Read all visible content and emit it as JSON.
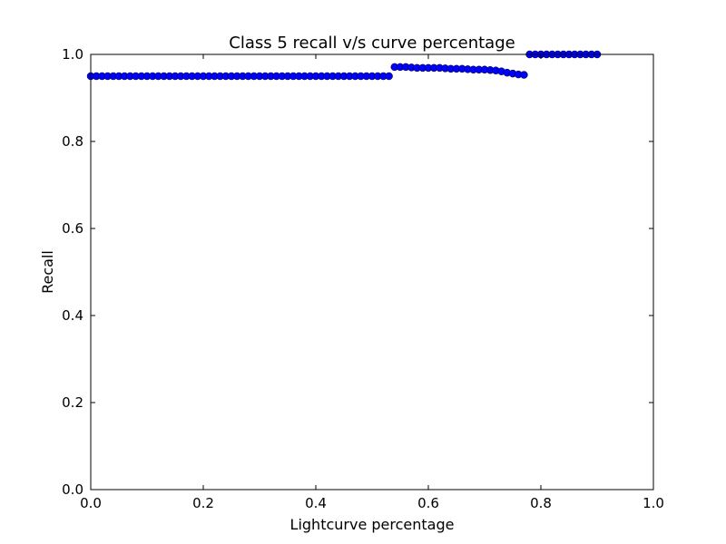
{
  "chart_data": {
    "type": "scatter",
    "title": "Class 5 recall v/s curve percentage",
    "xlabel": "Lightcurve percentage",
    "ylabel": "Recall",
    "xlim": [
      0.0,
      1.0
    ],
    "ylim": [
      0.0,
      1.0
    ],
    "xticks": [
      "0.0",
      "0.2",
      "0.4",
      "0.6",
      "0.8",
      "1.0"
    ],
    "yticks": [
      "0.0",
      "0.2",
      "0.4",
      "0.6",
      "0.8",
      "1.0"
    ],
    "grid": false,
    "marker_color": "#0000ff",
    "segments": [
      {
        "x_start": 0.0,
        "x_end": 0.53,
        "step": 0.01,
        "y": 0.95
      },
      {
        "x_start": 0.54,
        "x_end": 0.77,
        "step": 0.01,
        "y_values": [
          0.971,
          0.971,
          0.971,
          0.97,
          0.969,
          0.969,
          0.969,
          0.969,
          0.969,
          0.968,
          0.967,
          0.967,
          0.967,
          0.966,
          0.965,
          0.965,
          0.965,
          0.964,
          0.963,
          0.961,
          0.958,
          0.956,
          0.954,
          0.953
        ]
      },
      {
        "x_start": 0.78,
        "x_end": 0.9,
        "step": 0.01,
        "y": 1.0
      }
    ]
  }
}
